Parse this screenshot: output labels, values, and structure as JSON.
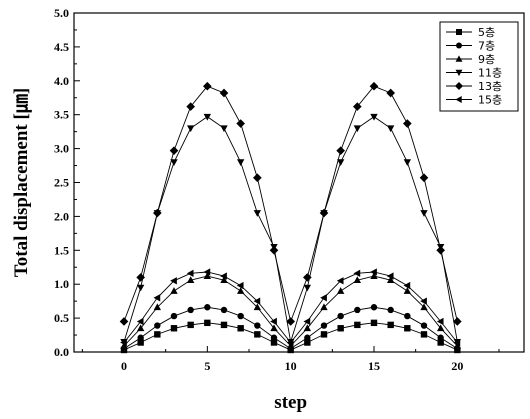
{
  "chart_data": {
    "type": "line",
    "title": "",
    "xlabel": "step",
    "ylabel": "Total displacement [㎛]",
    "xlim": [
      -3,
      24
    ],
    "ylim": [
      0,
      5.0
    ],
    "x_ticks": [
      "0",
      "5",
      "10",
      "15",
      "20"
    ],
    "y_ticks": [
      "0.0",
      "0.5",
      "1.0",
      "1.5",
      "2.0",
      "2.5",
      "3.0",
      "3.5",
      "4.0",
      "4.5",
      "5.0"
    ],
    "grid": false,
    "legend_position": "top-right",
    "x": [
      0,
      1,
      2,
      3,
      4,
      5,
      6,
      7,
      8,
      9,
      10,
      11,
      12,
      13,
      14,
      15,
      16,
      17,
      18,
      19,
      20
    ],
    "series": [
      {
        "name": "5층",
        "marker": "square",
        "values": [
          0.03,
          0.14,
          0.26,
          0.35,
          0.4,
          0.43,
          0.4,
          0.35,
          0.26,
          0.14,
          0.03,
          0.14,
          0.26,
          0.35,
          0.4,
          0.43,
          0.4,
          0.35,
          0.26,
          0.14,
          0.03
        ]
      },
      {
        "name": "7층",
        "marker": "circle",
        "values": [
          0.05,
          0.21,
          0.39,
          0.53,
          0.62,
          0.66,
          0.62,
          0.53,
          0.39,
          0.21,
          0.05,
          0.21,
          0.39,
          0.53,
          0.62,
          0.66,
          0.62,
          0.53,
          0.39,
          0.21,
          0.05
        ]
      },
      {
        "name": "9층",
        "marker": "triangle-up",
        "values": [
          0.09,
          0.35,
          0.66,
          0.9,
          1.06,
          1.12,
          1.06,
          0.9,
          0.66,
          0.35,
          0.09,
          0.35,
          0.66,
          0.9,
          1.06,
          1.12,
          1.06,
          0.9,
          0.66,
          0.35,
          0.09
        ]
      },
      {
        "name": "11층",
        "marker": "triangle-down",
        "values": [
          0.15,
          0.95,
          2.05,
          2.8,
          3.3,
          3.47,
          3.3,
          2.8,
          2.05,
          1.55,
          0.15,
          0.95,
          2.05,
          2.8,
          3.3,
          3.47,
          3.3,
          2.8,
          2.05,
          1.55,
          0.15
        ]
      },
      {
        "name": "13층",
        "marker": "diamond",
        "values": [
          0.45,
          1.1,
          2.05,
          2.97,
          3.62,
          3.92,
          3.82,
          3.37,
          2.57,
          1.5,
          0.45,
          1.1,
          2.05,
          2.97,
          3.62,
          3.92,
          3.82,
          3.37,
          2.57,
          1.5,
          0.45
        ]
      },
      {
        "name": "15층",
        "marker": "triangle-left",
        "values": [
          0.14,
          0.45,
          0.8,
          1.05,
          1.16,
          1.18,
          1.12,
          0.98,
          0.75,
          0.45,
          0.14,
          0.45,
          0.8,
          1.05,
          1.16,
          1.18,
          1.12,
          0.98,
          0.75,
          0.45,
          0.14
        ]
      }
    ]
  }
}
